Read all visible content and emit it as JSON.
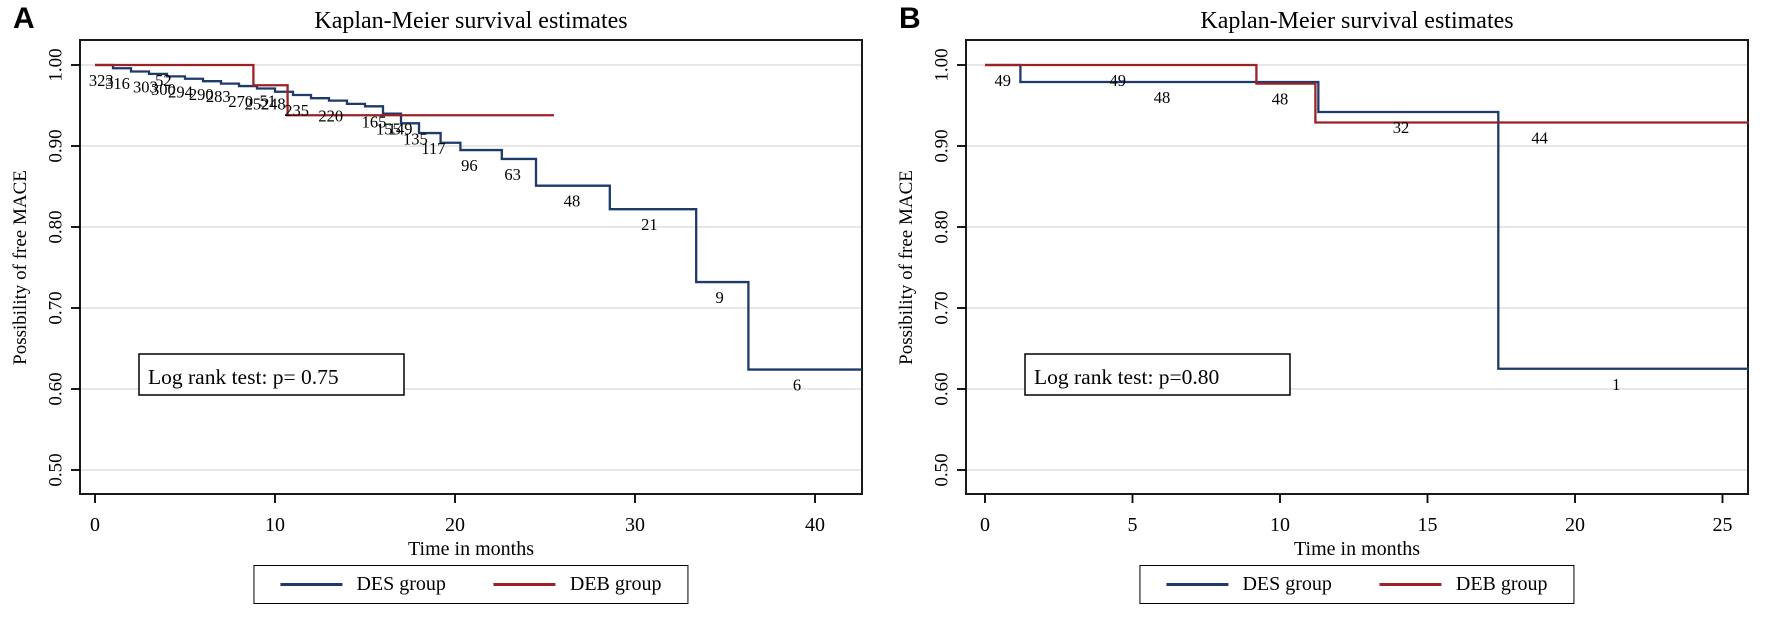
{
  "figure_background": "#ffffff",
  "colors": {
    "des": "#1d3a6a",
    "deb": "#9b2226",
    "grid": "#e7e7e7",
    "axis": "#000000"
  },
  "chart_data": [
    {
      "type": "line",
      "subtype": "kaplan-meier-step",
      "panel_label": "A",
      "title": "Kaplan-Meier survival estimates",
      "xlabel": "Time in months",
      "ylabel": "Possibility of free MACE",
      "xticks": [
        0,
        10,
        20,
        30,
        40
      ],
      "xtick_labels": [
        "0",
        "10",
        "20",
        "30",
        "40"
      ],
      "xlim": [
        0,
        42.6
      ],
      "yticks": [
        1.0,
        0.9,
        0.8,
        0.7,
        0.6,
        0.5
      ],
      "ytick_labels": [
        "1.00",
        "0.90",
        "0.80",
        "0.70",
        "0.60",
        "0.50"
      ],
      "ylim": [
        0.47,
        1.03
      ],
      "grid": "horizontal",
      "annotation": "Log rank test: p= 0.75",
      "legend_position": "bottom-center",
      "series": [
        {
          "name": "DES group",
          "color_key": "des",
          "steps": [
            [
              0,
              1.0
            ],
            [
              1,
              0.996
            ],
            [
              2,
              0.992
            ],
            [
              3,
              0.989
            ],
            [
              4,
              0.986
            ],
            [
              5,
              0.983
            ],
            [
              6,
              0.98
            ],
            [
              7,
              0.977
            ],
            [
              8,
              0.974
            ],
            [
              9,
              0.971
            ],
            [
              10,
              0.967
            ],
            [
              11,
              0.963
            ],
            [
              12,
              0.959
            ],
            [
              13,
              0.956
            ],
            [
              14,
              0.952
            ],
            [
              15,
              0.949
            ],
            [
              16,
              0.94
            ],
            [
              17,
              0.928
            ],
            [
              18,
              0.916
            ],
            [
              19.2,
              0.904
            ],
            [
              20.3,
              0.895
            ],
            [
              22.6,
              0.884
            ],
            [
              24.5,
              0.851
            ],
            [
              28.6,
              0.822
            ],
            [
              33.4,
              0.732
            ],
            [
              36.3,
              0.624
            ]
          ],
          "end_t": 42.6,
          "atrisk": [
            {
              "t": 0.35,
              "label": "323"
            },
            {
              "t": 1.25,
              "label": "316"
            },
            {
              "t": 2.8,
              "label": "303"
            },
            {
              "t": 3.8,
              "label": "300"
            },
            {
              "t": 4.75,
              "label": "294"
            },
            {
              "t": 5.9,
              "label": "290"
            },
            {
              "t": 6.85,
              "label": "283"
            },
            {
              "t": 8.1,
              "label": "270"
            },
            {
              "t": 9.0,
              "label": "252"
            },
            {
              "t": 9.9,
              "label": "248"
            },
            {
              "t": 11.2,
              "label": "235"
            },
            {
              "t": 13.1,
              "label": "220"
            },
            {
              "t": 15.5,
              "label": "165"
            },
            {
              "t": 16.3,
              "label": "155"
            },
            {
              "t": 16.95,
              "label": "149"
            },
            {
              "t": 17.8,
              "label": "135"
            },
            {
              "t": 18.8,
              "label": "117"
            },
            {
              "t": 20.8,
              "label": "96"
            },
            {
              "t": 23.2,
              "label": "63"
            },
            {
              "t": 26.5,
              "label": "48"
            },
            {
              "t": 30.8,
              "label": "21"
            },
            {
              "t": 34.7,
              "label": "9"
            },
            {
              "t": 39.0,
              "label": "6"
            }
          ]
        },
        {
          "name": "DEB group",
          "color_key": "deb",
          "steps": [
            [
              0,
              1.0
            ],
            [
              8.8,
              0.975
            ],
            [
              10.7,
              0.938
            ]
          ],
          "end_t": 25.5,
          "atrisk": [
            {
              "t": 3.8,
              "label": "52"
            },
            {
              "t": 9.6,
              "label": "51"
            }
          ]
        }
      ]
    },
    {
      "type": "line",
      "subtype": "kaplan-meier-step",
      "panel_label": "B",
      "title": "Kaplan-Meier survival estimates",
      "xlabel": "Time in months",
      "ylabel": "Possibility of free MACE",
      "xticks": [
        0,
        5,
        10,
        15,
        20,
        25
      ],
      "xtick_labels": [
        "0",
        "5",
        "10",
        "15",
        "20",
        "25"
      ],
      "xlim": [
        0,
        25.9
      ],
      "yticks": [
        1.0,
        0.9,
        0.8,
        0.7,
        0.6,
        0.5
      ],
      "ytick_labels": [
        "1.00",
        "0.90",
        "0.80",
        "0.70",
        "0.60",
        "0.50"
      ],
      "ylim": [
        0.47,
        1.03
      ],
      "grid": "horizontal",
      "annotation": "Log rank test: p=0.80",
      "legend_position": "bottom-center",
      "series": [
        {
          "name": "DES group",
          "color_key": "des",
          "steps": [
            [
              0,
              1.0
            ],
            [
              1.2,
              0.979
            ],
            [
              11.3,
              0.942
            ],
            [
              17.4,
              0.625
            ]
          ],
          "end_t": 25.9,
          "atrisk": [
            {
              "t": 0.6,
              "label": "49"
            },
            {
              "t": 6.0,
              "label": "48"
            },
            {
              "t": 14.1,
              "label": "32"
            },
            {
              "t": 21.4,
              "label": "1"
            }
          ]
        },
        {
          "name": "DEB group",
          "color_key": "deb",
          "steps": [
            [
              0,
              1.0
            ],
            [
              9.2,
              0.977
            ],
            [
              11.2,
              0.929
            ]
          ],
          "end_t": 25.9,
          "atrisk": [
            {
              "t": 4.5,
              "label": "49"
            },
            {
              "t": 10.0,
              "label": "48"
            },
            {
              "t": 18.8,
              "label": "44"
            }
          ]
        }
      ]
    }
  ]
}
